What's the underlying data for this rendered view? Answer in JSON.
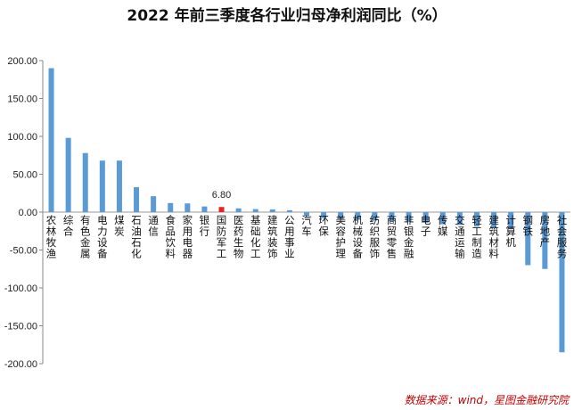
{
  "chart_data": {
    "type": "bar",
    "title": "2022 年前三季度各行业归母净利润同比（%）",
    "source": "数据来源：wind，星图金融研究院",
    "ylim": [
      -200,
      200
    ],
    "ytick_step": 50,
    "ytick_labels": [
      "200.00",
      "150.00",
      "100.00",
      "50.00",
      "0.00",
      "-50.00",
      "-100.00",
      "-150.00",
      "-200.00"
    ],
    "grid": false,
    "bar_color": "#5b9bd5",
    "highlight_color": "#e8231f",
    "highlight_category": "国防军工",
    "data_labels": [
      {
        "category": "国防军工",
        "text": "6.80"
      }
    ],
    "categories": [
      "农林牧渔",
      "综合",
      "有色金属",
      "电力设备",
      "煤炭",
      "石油石化",
      "通信",
      "食品饮料",
      "家用电器",
      "银行",
      "国防军工",
      "医药生物",
      "基础化工",
      "建筑装饰",
      "公用事业",
      "汽车",
      "环保",
      "美容护理",
      "机械设备",
      "纺织服饰",
      "商贸零售",
      "非银金融",
      "电子",
      "传媒",
      "交通运输",
      "轻工制造",
      "建筑材料",
      "计算机",
      "钢铁",
      "房地产",
      "社会服务"
    ],
    "values": [
      190,
      98,
      78,
      68,
      68,
      33,
      21,
      12,
      11.5,
      7.5,
      6.8,
      5,
      4,
      3.5,
      2.5,
      -5,
      -8,
      -9,
      -10,
      -11,
      -12,
      -13,
      -14,
      -16,
      -17,
      -19,
      -21,
      -22,
      -70,
      -75,
      -185
    ]
  }
}
